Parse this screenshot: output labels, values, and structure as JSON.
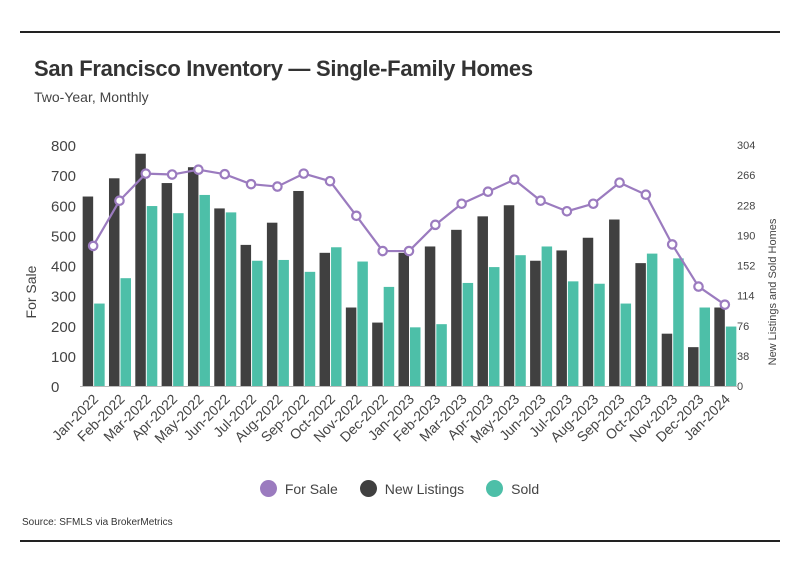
{
  "title": "San Francisco Inventory — Single-Family Homes",
  "subtitle": "Two-Year, Monthly",
  "source": "Source:  SFMLS via BrokerMetrics",
  "colors": {
    "for_sale": "#9b7bbf",
    "new_listings": "#404040",
    "sold": "#4dbfa8"
  },
  "chart_data": {
    "type": "bar",
    "categories": [
      "Jan-2022",
      "Feb-2022",
      "Mar-2022",
      "Apr-2022",
      "May-2022",
      "Jun-2022",
      "Jul-2022",
      "Aug-2022",
      "Sep-2022",
      "Oct-2022",
      "Nov-2022",
      "Dec-2022",
      "Jan-2023",
      "Feb-2023",
      "Mar-2023",
      "Apr-2023",
      "May-2023",
      "Jun-2023",
      "Jul-2023",
      "Aug-2023",
      "Sep-2023",
      "Oct-2023",
      "Nov-2023",
      "Dec-2023",
      "Jan-2024"
    ],
    "ylabel": "For Sale",
    "ylabel_right": "New Listings and Sold Homes",
    "ylim": [
      0,
      800
    ],
    "yticks": [
      "0",
      "100",
      "200",
      "300",
      "400",
      "500",
      "600",
      "700",
      "800"
    ],
    "ylim_right": [
      0,
      304
    ],
    "yticks_right": [
      "0",
      "38",
      "76",
      "114",
      "152",
      "190",
      "228",
      "266",
      "304"
    ],
    "legend_position": "bottom",
    "series": [
      {
        "name": "For Sale",
        "type": "line",
        "axis": "left",
        "values": [
          465,
          615,
          705,
          702,
          718,
          703,
          670,
          662,
          705,
          680,
          565,
          448,
          448,
          535,
          605,
          645,
          685,
          615,
          580,
          605,
          675,
          635,
          470,
          330,
          270
        ]
      },
      {
        "name": "New Listings",
        "type": "bar",
        "axis": "right",
        "values": [
          239,
          262,
          293,
          256,
          276,
          224,
          178,
          206,
          246,
          168,
          99,
          80,
          168,
          176,
          197,
          214,
          228,
          158,
          171,
          187,
          210,
          155,
          66,
          49,
          99
        ]
      },
      {
        "name": "Sold",
        "type": "bar",
        "axis": "right",
        "values": [
          104,
          136,
          227,
          218,
          241,
          219,
          158,
          159,
          144,
          175,
          157,
          125,
          74,
          78,
          130,
          150,
          165,
          176,
          132,
          129,
          104,
          167,
          161,
          99,
          75
        ]
      }
    ]
  }
}
